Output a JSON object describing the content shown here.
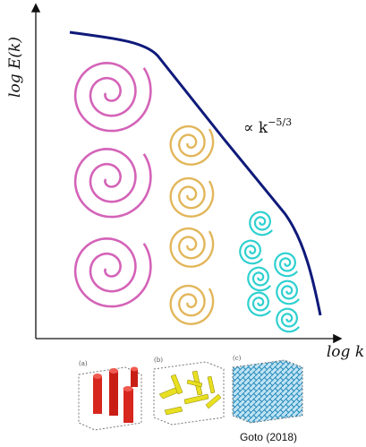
{
  "axes": {
    "y_label": "log E(k)",
    "x_label": "log k"
  },
  "annotation": {
    "base": "∝ k",
    "exponent": "−5/3"
  },
  "panels": [
    {
      "label": "(a)"
    },
    {
      "label": "(b)"
    },
    {
      "label": "(c)"
    }
  ],
  "credit": "Goto (2018)"
}
